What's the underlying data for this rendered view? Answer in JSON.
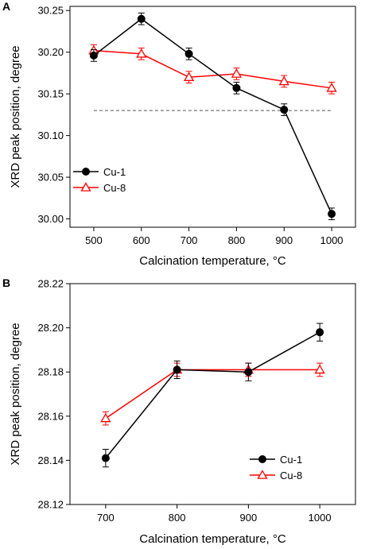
{
  "colors": {
    "cu1": "#000000",
    "cu8": "#ff0000",
    "reference_line": "#555555"
  },
  "chart_data": [
    {
      "panel": "A",
      "type": "line",
      "xlabel": "Calcination temperature, °C",
      "ylabel": "XRD peak position, degree",
      "xlim": [
        450,
        1050
      ],
      "ylim": [
        29.99,
        30.255
      ],
      "x_ticks": [
        500,
        600,
        700,
        800,
        900,
        1000
      ],
      "x_tick_labels": [
        "500",
        "600",
        "700",
        "800",
        "900",
        "1000"
      ],
      "y_ticks": [
        30.0,
        30.05,
        30.1,
        30.15,
        30.2,
        30.25
      ],
      "y_tick_labels": [
        "30.00",
        "30.05",
        "30.10",
        "30.15",
        "30.20",
        "30.25"
      ],
      "reference_line": {
        "y": 30.13,
        "x_from": 500,
        "x_to": 1000,
        "style": "dashed"
      },
      "legend_position": "bottom-left",
      "series": [
        {
          "name": "Cu-1",
          "marker": "filled-circle",
          "x": [
            500,
            600,
            700,
            800,
            900,
            1000
          ],
          "y": [
            30.196,
            30.24,
            30.198,
            30.157,
            30.131,
            30.006
          ],
          "err": [
            0.007,
            0.007,
            0.007,
            0.007,
            0.007,
            0.007
          ]
        },
        {
          "name": "Cu-8",
          "marker": "open-triangle",
          "x": [
            500,
            600,
            700,
            800,
            900,
            1000
          ],
          "y": [
            30.202,
            30.198,
            30.17,
            30.174,
            30.165,
            30.157
          ],
          "err": [
            0.007,
            0.007,
            0.007,
            0.007,
            0.007,
            0.007
          ]
        }
      ]
    },
    {
      "panel": "B",
      "type": "line",
      "xlabel": "Calcination temperature, °C",
      "ylabel": "XRD peak position, degree",
      "xlim": [
        650,
        1050
      ],
      "ylim": [
        28.12,
        28.22
      ],
      "x_ticks": [
        700,
        800,
        900,
        1000
      ],
      "x_tick_labels": [
        "700",
        "800",
        "900",
        "1000"
      ],
      "y_ticks": [
        28.12,
        28.14,
        28.16,
        28.18,
        28.2,
        28.22
      ],
      "y_tick_labels": [
        "28.12",
        "28.14",
        "28.16",
        "28.18",
        "28.20",
        "28.22"
      ],
      "legend_position": "bottom-right",
      "series": [
        {
          "name": "Cu-1",
          "marker": "filled-circle",
          "x": [
            700,
            800,
            900,
            1000
          ],
          "y": [
            28.141,
            28.181,
            28.18,
            28.198
          ],
          "err": [
            0.004,
            0.004,
            0.004,
            0.004
          ]
        },
        {
          "name": "Cu-8",
          "marker": "open-triangle",
          "x": [
            700,
            800,
            900,
            1000
          ],
          "y": [
            28.159,
            28.181,
            28.181,
            28.181
          ],
          "err": [
            0.003,
            0.003,
            0.003,
            0.003
          ]
        }
      ]
    }
  ]
}
